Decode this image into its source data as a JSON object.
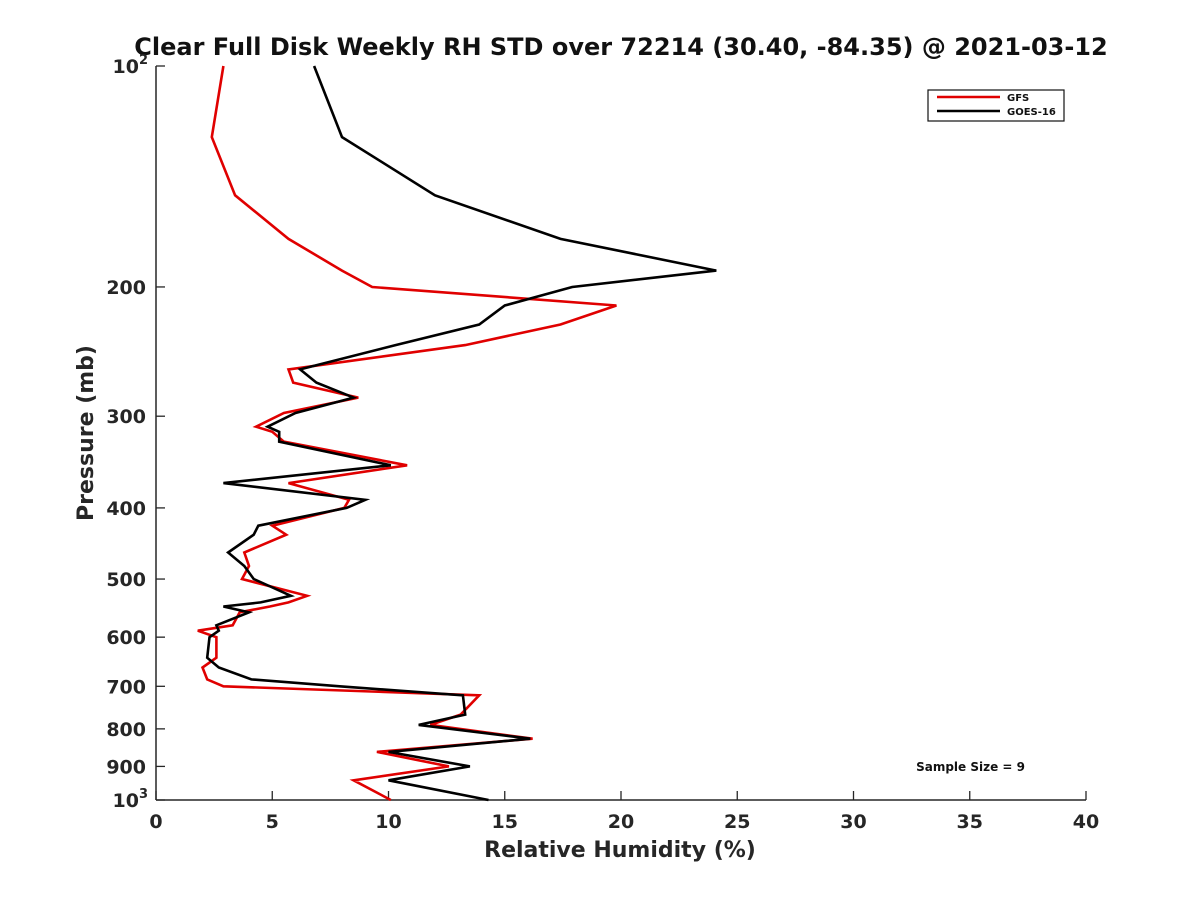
{
  "chart_data": {
    "type": "line",
    "title": "Clear Full Disk Weekly RH STD over 72214 (30.40, -84.35) @ 2021-03-12",
    "xlabel": "Relative Humidity (%)",
    "ylabel": "Pressure (mb)",
    "xlim": [
      0,
      40
    ],
    "ylim": [
      100,
      1000
    ],
    "yscale": "log",
    "x_ticks": [
      0,
      5,
      10,
      15,
      20,
      25,
      30,
      35,
      40
    ],
    "y_ticks": [
      {
        "value": 100,
        "base": "10",
        "exp": "2"
      },
      {
        "value": 200,
        "label": "200"
      },
      {
        "value": 300,
        "label": "300"
      },
      {
        "value": 400,
        "label": "400"
      },
      {
        "value": 500,
        "label": "500"
      },
      {
        "value": 600,
        "label": "600"
      },
      {
        "value": 700,
        "label": "700"
      },
      {
        "value": 800,
        "label": "800"
      },
      {
        "value": 900,
        "label": "900"
      },
      {
        "value": 1000,
        "base": "10",
        "exp": "3"
      }
    ],
    "grid": false,
    "legend_position": "top-right",
    "annotation": "Sample Size = 9",
    "series": [
      {
        "name": "GFS",
        "color": "#e00000",
        "points": [
          [
            2.9,
            100
          ],
          [
            2.4,
            125
          ],
          [
            3.4,
            150
          ],
          [
            5.7,
            172
          ],
          [
            8.0,
            190
          ],
          [
            9.3,
            200
          ],
          [
            19.8,
            212
          ],
          [
            17.4,
            225
          ],
          [
            13.3,
            240
          ],
          [
            5.7,
            259
          ],
          [
            5.9,
            270
          ],
          [
            8.7,
            283
          ],
          [
            5.5,
            297
          ],
          [
            4.3,
            310
          ],
          [
            5.0,
            315
          ],
          [
            5.5,
            325
          ],
          [
            10.8,
            350
          ],
          [
            5.7,
            370
          ],
          [
            8.3,
            390
          ],
          [
            8.1,
            400
          ],
          [
            5.0,
            423
          ],
          [
            5.6,
            435
          ],
          [
            3.8,
            460
          ],
          [
            4.0,
            480
          ],
          [
            3.7,
            500
          ],
          [
            6.5,
            527
          ],
          [
            5.7,
            538
          ],
          [
            4.9,
            545
          ],
          [
            3.6,
            555
          ],
          [
            3.3,
            578
          ],
          [
            1.8,
            588
          ],
          [
            2.6,
            600
          ],
          [
            2.6,
            640
          ],
          [
            2.0,
            660
          ],
          [
            2.2,
            685
          ],
          [
            2.9,
            700
          ],
          [
            13.9,
            720
          ],
          [
            13.1,
            765
          ],
          [
            11.8,
            790
          ],
          [
            16.2,
            825
          ],
          [
            9.5,
            860
          ],
          [
            12.6,
            900
          ],
          [
            8.5,
            940
          ],
          [
            10.1,
            1000
          ]
        ]
      },
      {
        "name": "GOES-16",
        "color": "#000000",
        "points": [
          [
            6.8,
            100
          ],
          [
            8.0,
            125
          ],
          [
            12.0,
            150
          ],
          [
            17.4,
            172
          ],
          [
            24.1,
            190
          ],
          [
            17.9,
            200
          ],
          [
            15.0,
            212
          ],
          [
            13.9,
            225
          ],
          [
            10.3,
            240
          ],
          [
            6.2,
            259
          ],
          [
            6.9,
            270
          ],
          [
            8.5,
            283
          ],
          [
            6.0,
            297
          ],
          [
            4.8,
            310
          ],
          [
            5.3,
            315
          ],
          [
            5.3,
            325
          ],
          [
            10.1,
            350
          ],
          [
            2.9,
            370
          ],
          [
            9.0,
            390
          ],
          [
            8.2,
            400
          ],
          [
            4.4,
            423
          ],
          [
            4.2,
            435
          ],
          [
            3.1,
            460
          ],
          [
            3.8,
            480
          ],
          [
            4.2,
            500
          ],
          [
            5.8,
            527
          ],
          [
            4.5,
            538
          ],
          [
            2.9,
            545
          ],
          [
            4.0,
            555
          ],
          [
            2.6,
            578
          ],
          [
            2.7,
            588
          ],
          [
            2.3,
            600
          ],
          [
            2.2,
            640
          ],
          [
            2.7,
            660
          ],
          [
            4.1,
            685
          ],
          [
            7.9,
            700
          ],
          [
            13.2,
            720
          ],
          [
            13.3,
            765
          ],
          [
            11.3,
            790
          ],
          [
            16.1,
            825
          ],
          [
            10.0,
            860
          ],
          [
            13.5,
            900
          ],
          [
            10.0,
            940
          ],
          [
            14.3,
            1000
          ]
        ]
      }
    ]
  }
}
